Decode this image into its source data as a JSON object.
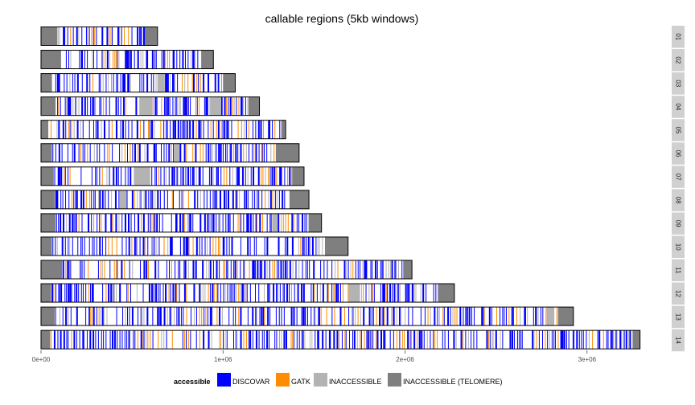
{
  "chart_data": {
    "type": "genome_track",
    "title": "callable regions (5kb windows)",
    "xlabel": "",
    "ylabel": "",
    "xlim": [
      0,
      3350000
    ],
    "x_ticks": [
      0,
      1000000,
      2000000,
      3000000
    ],
    "x_tick_labels": [
      "0e+00",
      "1e+06",
      "2e+06",
      "3e+06"
    ],
    "grid": false,
    "facet_labels": [
      "01",
      "02",
      "03",
      "04",
      "05",
      "06",
      "07",
      "08",
      "09",
      "10",
      "11",
      "12",
      "13",
      "14"
    ],
    "chromosome_lengths": [
      640000,
      947000,
      1067000,
      1200000,
      1344000,
      1418000,
      1445000,
      1472000,
      1541000,
      1687000,
      2038000,
      2271000,
      2925000,
      3291000
    ],
    "legend": {
      "title": "accessible",
      "position": "bottom",
      "entries": [
        {
          "name": "DISCOVAR",
          "color": "#0000FF"
        },
        {
          "name": "GATK",
          "color": "#FF8C00"
        },
        {
          "name": "INACCESSIBLE",
          "color": "#B3B3B3"
        },
        {
          "name": "INACCESSIBLE (TELOMERE)",
          "color": "#7F7F7F"
        }
      ]
    },
    "telomeres": [
      [
        [
          0,
          90000
        ],
        [
          570000,
          640000
        ]
      ],
      [
        [
          0,
          110000
        ],
        [
          880000,
          947000
        ]
      ],
      [
        [
          0,
          60000
        ],
        [
          1000000,
          1067000
        ]
      ],
      [
        [
          0,
          80000
        ],
        [
          1140000,
          1200000
        ]
      ],
      [
        [
          0,
          40000
        ],
        [
          1320000,
          1344000
        ]
      ],
      [
        [
          0,
          60000
        ],
        [
          1290000,
          1418000
        ]
      ],
      [
        [
          0,
          70000
        ],
        [
          1380000,
          1445000
        ]
      ],
      [
        [
          0,
          75000
        ],
        [
          1365000,
          1472000
        ]
      ],
      [
        [
          0,
          80000
        ],
        [
          1470000,
          1541000
        ]
      ],
      [
        [
          0,
          60000
        ],
        [
          1560000,
          1687000
        ]
      ],
      [
        [
          0,
          115000
        ],
        [
          1990000,
          2038000
        ]
      ],
      [
        [
          0,
          55000
        ],
        [
          2180000,
          2271000
        ]
      ],
      [
        [
          0,
          75000
        ],
        [
          2840000,
          2925000
        ]
      ],
      [
        [
          0,
          50000
        ],
        [
          3250000,
          3291000
        ]
      ]
    ],
    "inaccessible_regions": [
      [],
      [],
      [
        [
          640000,
          680000
        ]
      ],
      [
        [
          540000,
          610000
        ],
        [
          930000,
          990000
        ]
      ],
      [],
      [
        [
          730000,
          760000
        ]
      ],
      [
        [
          510000,
          600000
        ]
      ],
      [
        [
          430000,
          470000
        ]
      ],
      [
        [
          1270000,
          1300000
        ]
      ],
      [],
      [],
      [
        [
          1690000,
          1750000
        ]
      ],
      [
        [
          2780000,
          2820000
        ]
      ],
      []
    ]
  }
}
